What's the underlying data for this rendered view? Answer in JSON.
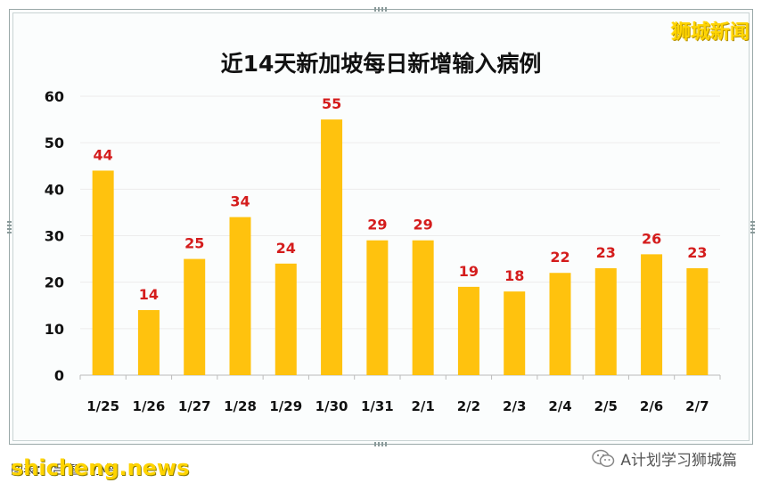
{
  "chart_data": {
    "type": "bar",
    "title": "近14天新加坡每日新增输入病例",
    "categories": [
      "1/25",
      "1/26",
      "1/27",
      "1/28",
      "1/29",
      "1/30",
      "1/31",
      "2/1",
      "2/2",
      "2/3",
      "2/4",
      "2/5",
      "2/6",
      "2/7"
    ],
    "values": [
      44,
      14,
      25,
      34,
      24,
      55,
      29,
      29,
      19,
      18,
      22,
      23,
      26,
      23
    ],
    "yticks": [
      0,
      10,
      20,
      30,
      40,
      50,
      60
    ],
    "ylim": [
      0,
      60
    ],
    "bar_color": "#ffc20e",
    "label_color": "#d41c1c",
    "grid": true
  },
  "watermark": "狮城新闻",
  "footer": {
    "credit": "图表：        吕 智 · 小智",
    "site": "shicheng.news",
    "source": "A计划学习狮城篇",
    "source_icon": "wechat-icon"
  }
}
